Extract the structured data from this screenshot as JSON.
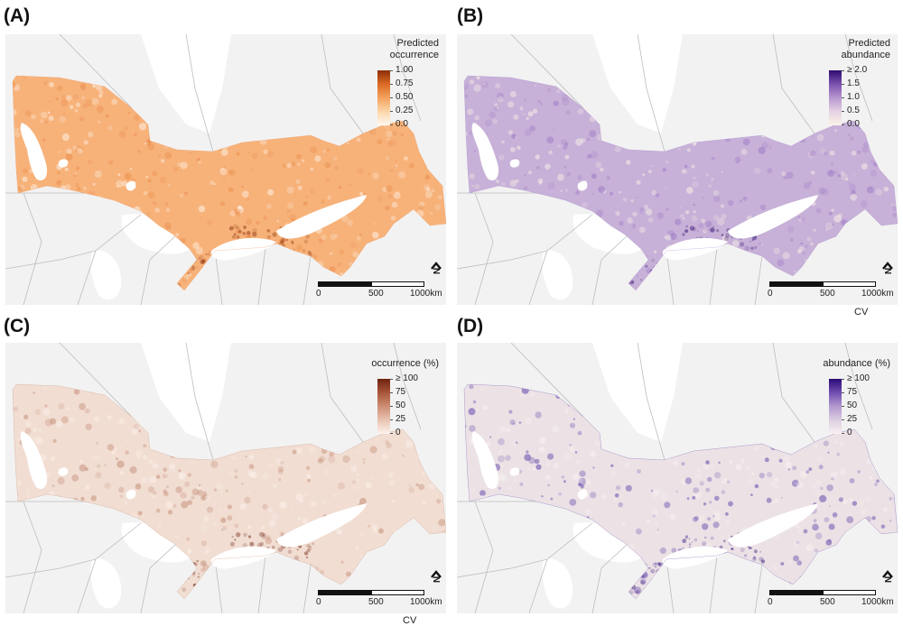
{
  "panels": {
    "a": {
      "letter": "(A)",
      "legend_title": [
        "Predicted",
        "occurrence"
      ],
      "ticks": [
        "1.00",
        "0.75",
        "0.50",
        "0.25",
        "0.0"
      ],
      "colors": [
        "#fff8ef",
        "#fcd7a8",
        "#f3a35e",
        "#db6a24",
        "#8c2f08"
      ],
      "map_fill": "#f7b27a",
      "map_fill_dark": "#e98a48",
      "scale": [
        "0",
        "500",
        "1000km"
      ],
      "caption": "",
      "north": "N"
    },
    "b": {
      "letter": "(B)",
      "legend_title": [
        "Predicted",
        "abundance"
      ],
      "ticks": [
        "≥ 2.0",
        "1.5",
        "1.0",
        "0.5",
        "0.0"
      ],
      "colors": [
        "#fbf4e8",
        "#e5d2e3",
        "#b897cf",
        "#7a52b0",
        "#2e0a6f"
      ],
      "map_fill": "#c7b1d8",
      "map_fill_dark": "#9d77c4",
      "scale": [
        "0",
        "500",
        "1000km"
      ],
      "caption": "CV",
      "north": "N"
    },
    "c": {
      "letter": "(C)",
      "legend_title": [
        "",
        "occurrence (%)"
      ],
      "ticks": [
        "≥ 100",
        "75",
        "50",
        "25",
        "0"
      ],
      "colors": [
        "#fcf3ee",
        "#e9c3b1",
        "#cd8e73",
        "#a9553a",
        "#6e2310"
      ],
      "map_fill": "#f1ddd2",
      "map_fill_dark": "#c28870",
      "scale": [
        "0",
        "500",
        "1000km"
      ],
      "caption": "CV",
      "north": "N"
    },
    "d": {
      "letter": "(D)",
      "legend_title": [
        "",
        "abundance (%)"
      ],
      "ticks": [
        "≥ 100",
        "75",
        "50",
        "25",
        "0"
      ],
      "colors": [
        "#f8f2f0",
        "#ddcfe2",
        "#b299cf",
        "#6f4db0",
        "#2a0a78"
      ],
      "map_fill": "#ece2e6",
      "map_fill_dark": "#5b3aa6",
      "scale": [
        "0",
        "500",
        "1000km"
      ],
      "caption": "",
      "north": "N"
    }
  },
  "colors": {
    "background_land": "#f2f2f2",
    "water": "#ffffff",
    "boundary": "#bdbdbd"
  }
}
